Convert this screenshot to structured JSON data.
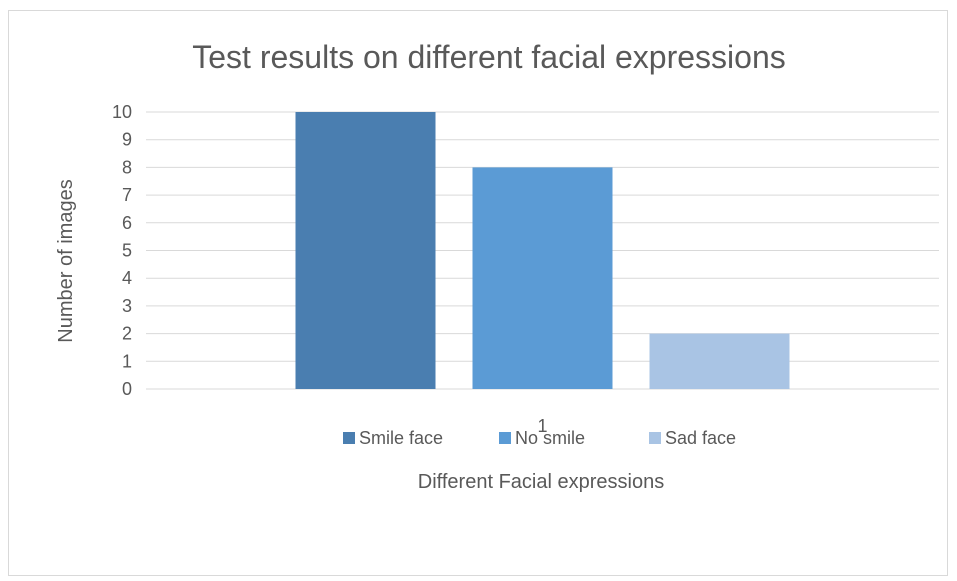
{
  "chart_data": {
    "type": "bar",
    "title": "Test results on different facial expressions",
    "xlabel": "Different Facial expressions",
    "ylabel": "Number of images",
    "categories": [
      "1"
    ],
    "series": [
      {
        "name": "Smile face",
        "values": [
          10
        ],
        "color": "#4a7eb0"
      },
      {
        "name": "No smile",
        "values": [
          8
        ],
        "color": "#5b9bd5"
      },
      {
        "name": "Sad face",
        "values": [
          2
        ],
        "color": "#a9c4e4"
      }
    ],
    "ylim": [
      0,
      10
    ],
    "yticks": [
      "0",
      "1",
      "2",
      "3",
      "4",
      "5",
      "6",
      "7",
      "8",
      "9",
      "10"
    ],
    "grid": true,
    "legend_position": "bottom"
  }
}
